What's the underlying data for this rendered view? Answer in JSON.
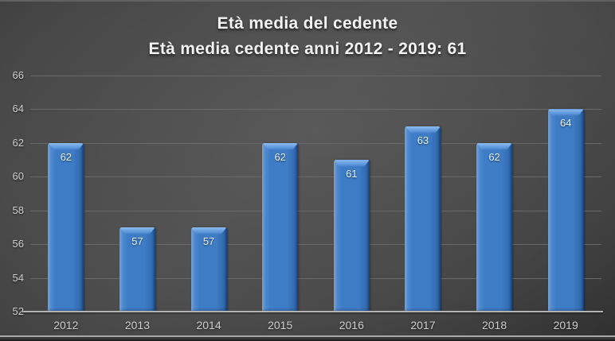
{
  "colors": {
    "bar_main": "#3e7cc6",
    "bar_bevel": "#8cbbf0",
    "bar_light_edge": "#5a94d8",
    "bar_dark": "#2e63a4",
    "gridline": "#696969",
    "axis_line": "#b2b2b2",
    "tick_text": "#cfcfcf",
    "data_label_text": "#e9eef5",
    "title_text": "#f4f4f4",
    "background_center": "#4a4a4a",
    "background_edge": "#282828"
  },
  "chart_data": {
    "type": "bar",
    "title": "Età media del cedente",
    "subtitle": "Età media cedente anni 2012 - 2019: 61",
    "categories": [
      "2012",
      "2013",
      "2014",
      "2015",
      "2016",
      "2017",
      "2018",
      "2019"
    ],
    "values": [
      62,
      57,
      57,
      62,
      61,
      63,
      62,
      64
    ],
    "xlabel": "",
    "ylabel": "",
    "ylim": [
      52,
      66
    ],
    "ytick_step": 2,
    "yticks": [
      66,
      64,
      62,
      60,
      58,
      56,
      54,
      52
    ],
    "grid": true,
    "data_labels": true,
    "legend": false
  }
}
